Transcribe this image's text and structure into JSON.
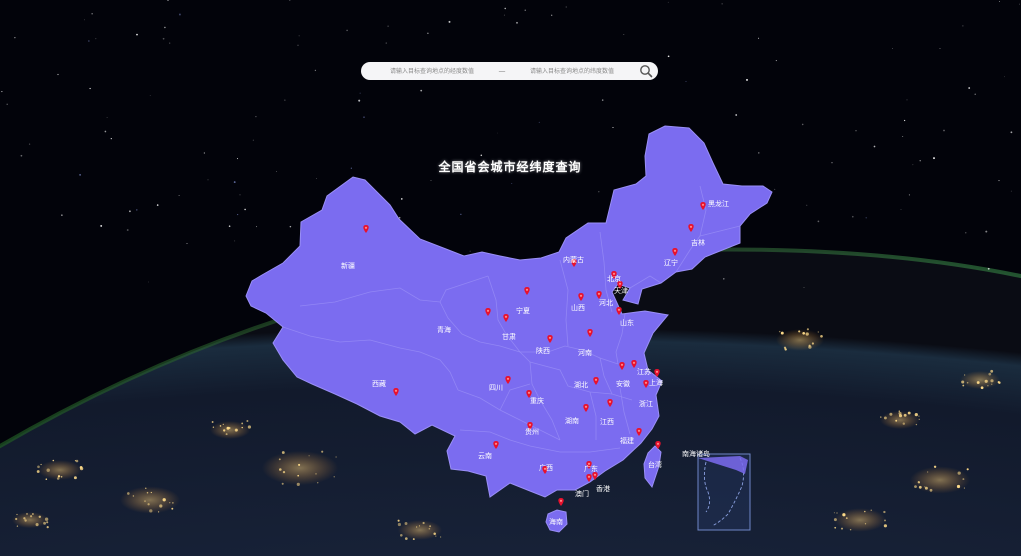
{
  "title": "全国省会城市经纬度查询",
  "search": {
    "lng_placeholder": "请输入目标查询地点的经度数值",
    "separator": "—",
    "lat_placeholder": "请输入目标查询地点的纬度数值",
    "button_icon": "search-icon"
  },
  "colors": {
    "map_fill": "#7b6cf0",
    "map_border": "#9a8ff7",
    "marker": "#e8112d",
    "label": "#ffffff",
    "inset_border": "#6f86c8"
  },
  "inset_label": "南海诸岛",
  "provinces": [
    {
      "id": "xinjiang",
      "name": "新疆"
    },
    {
      "id": "xizang",
      "name": "西藏"
    },
    {
      "id": "qinghai",
      "name": "青海"
    },
    {
      "id": "gansu",
      "name": "甘肃"
    },
    {
      "id": "ningxia",
      "name": "宁夏"
    },
    {
      "id": "neimenggu",
      "name": "内蒙古"
    },
    {
      "id": "heilongjiang",
      "name": "黑龙江"
    },
    {
      "id": "jilin",
      "name": "吉林"
    },
    {
      "id": "liaoning",
      "name": "辽宁"
    },
    {
      "id": "beijing",
      "name": "北京"
    },
    {
      "id": "tianjin",
      "name": "天津"
    },
    {
      "id": "hebei",
      "name": "河北"
    },
    {
      "id": "shanxi",
      "name": "山西"
    },
    {
      "id": "shandong",
      "name": "山东"
    },
    {
      "id": "shaanxi",
      "name": "陕西"
    },
    {
      "id": "henan",
      "name": "河南"
    },
    {
      "id": "sichuan",
      "name": "四川"
    },
    {
      "id": "chongqing",
      "name": "重庆"
    },
    {
      "id": "hubei",
      "name": "湖北"
    },
    {
      "id": "anhui",
      "name": "安徽"
    },
    {
      "id": "jiangsu",
      "name": "江苏"
    },
    {
      "id": "shanghai",
      "name": "上海"
    },
    {
      "id": "zhejiang",
      "name": "浙江"
    },
    {
      "id": "hunan",
      "name": "湖南"
    },
    {
      "id": "jiangxi",
      "name": "江西"
    },
    {
      "id": "guizhou",
      "name": "贵州"
    },
    {
      "id": "yunnan",
      "name": "云南"
    },
    {
      "id": "guangxi",
      "name": "广西"
    },
    {
      "id": "guangdong",
      "name": "广东"
    },
    {
      "id": "fujian",
      "name": "福建"
    },
    {
      "id": "taiwan",
      "name": "台湾"
    },
    {
      "id": "xianggang",
      "name": "香港"
    },
    {
      "id": "aomen",
      "name": "澳门"
    },
    {
      "id": "hainan",
      "name": "海南"
    }
  ]
}
